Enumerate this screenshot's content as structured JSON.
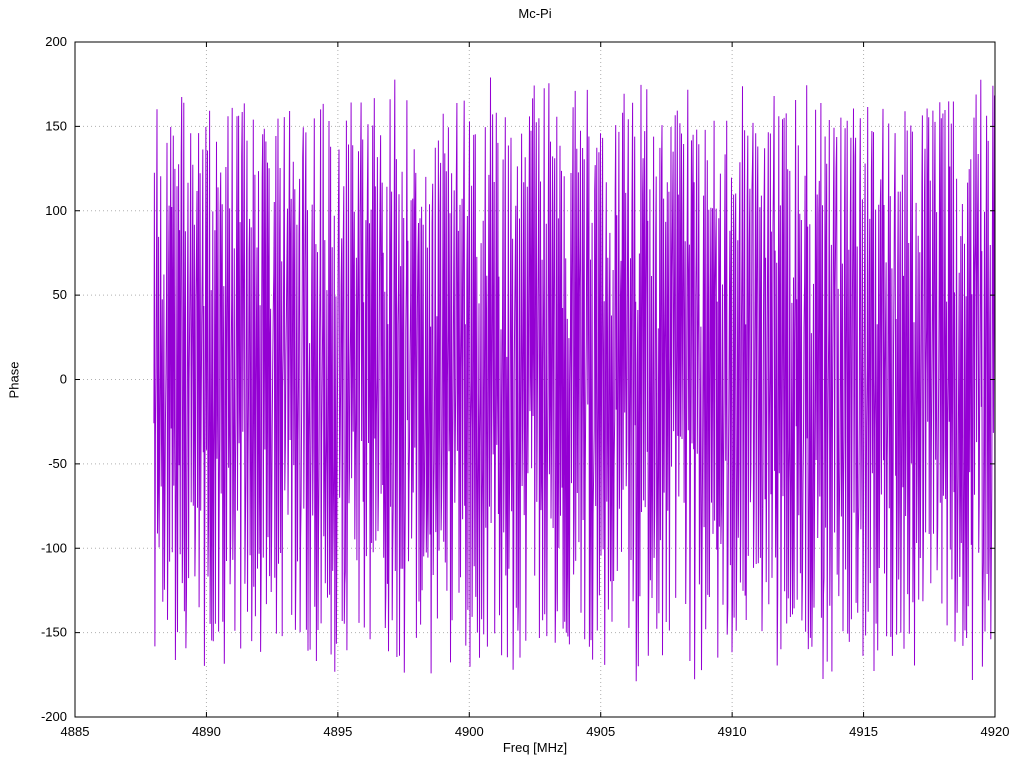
{
  "chart_data": {
    "type": "line",
    "title": "Mc-Pi",
    "xlabel": "Freq [MHz]",
    "ylabel": "Phase",
    "xlim": [
      4885,
      4920
    ],
    "ylim": [
      -200,
      200
    ],
    "xticks": [
      4885,
      4890,
      4895,
      4900,
      4905,
      4910,
      4915,
      4920
    ],
    "yticks": [
      -200,
      -150,
      -100,
      -50,
      0,
      50,
      100,
      150,
      200
    ],
    "grid": true,
    "legend": "none",
    "line_color": "#9400d3",
    "grid_color": "#b0b0b0",
    "border_color": "#000000",
    "series": [
      {
        "name": "phase",
        "note": "dense wrapped phase-noise trace spanning -180..180 deg from 4888 to 4920 MHz"
      }
    ],
    "signal": {
      "x_start": 4888.0,
      "x_end": 4920.0,
      "points": 1600,
      "wrap_deg": 180,
      "base_step_deg": 97,
      "jitter_deg": 150,
      "seed": 1234
    }
  }
}
